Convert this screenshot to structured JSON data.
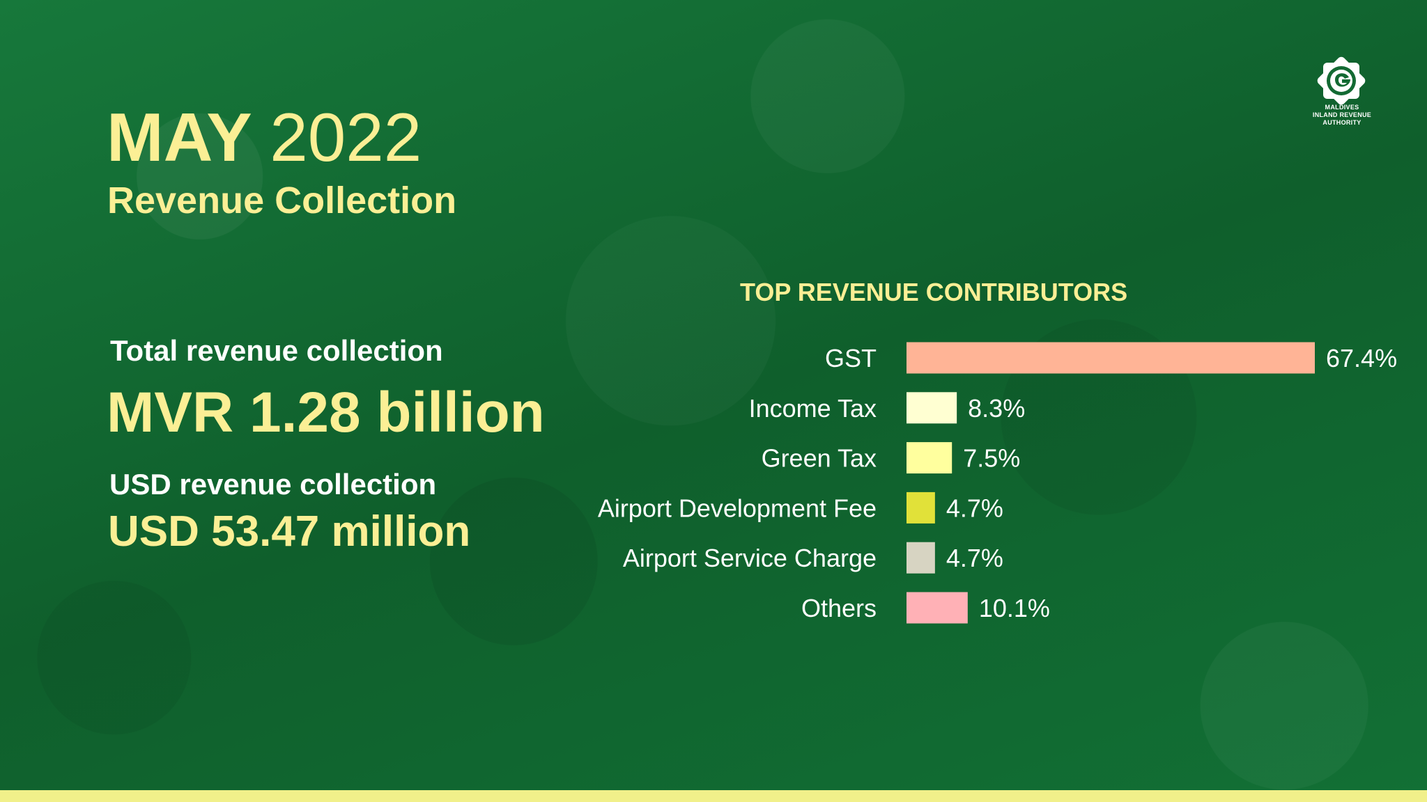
{
  "header": {
    "month": "MAY",
    "year": "2022",
    "subtitle": "Revenue Collection"
  },
  "summary": {
    "total_label": "Total revenue collection",
    "total_value": "MVR 1.28 billion",
    "usd_label": "USD revenue collection",
    "usd_value": "USD 53.47 million"
  },
  "logo": {
    "line1": "MALDIVES",
    "line2": "INLAND REVENUE",
    "line3": "AUTHORITY"
  },
  "chart_data": {
    "type": "bar",
    "orientation": "horizontal",
    "title": "TOP REVENUE CONTRIBUTORS",
    "categories": [
      "GST",
      "Income Tax",
      "Green Tax",
      "Airport Development Fee",
      "Airport Service Charge",
      "Others"
    ],
    "values": [
      67.4,
      8.3,
      7.5,
      4.7,
      4.7,
      10.1
    ],
    "value_labels": [
      "67.4%",
      "8.3%",
      "7.5%",
      "4.7%",
      "4.7%",
      "10.1%"
    ],
    "colors": [
      "#ffb496",
      "#ffffd2",
      "#ffff9e",
      "#e1e139",
      "#d7d4c2",
      "#ffb1b6"
    ],
    "unit": "%",
    "xlim": [
      0,
      67.4
    ],
    "grid": false,
    "legend": "none"
  },
  "colors": {
    "background": "#136a33",
    "accent_yellow": "#fbef95",
    "bottom_strip": "#f1f08a",
    "white": "#ffffff"
  }
}
